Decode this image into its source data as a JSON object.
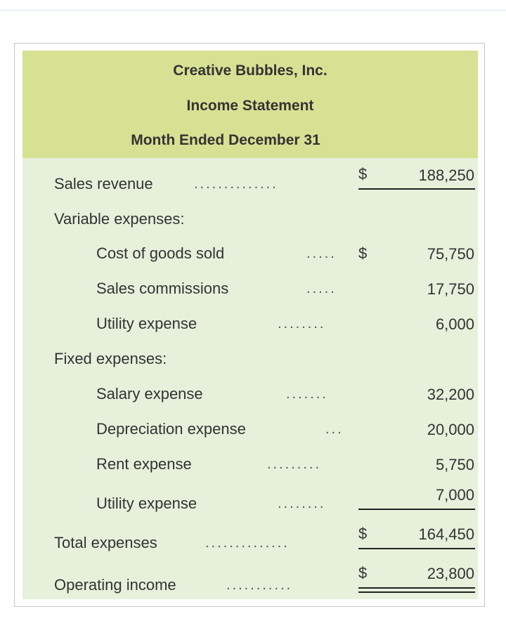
{
  "statement": {
    "company": "Creative Bubbles, Inc.",
    "title": "Income Statement",
    "period": "Month Ended December 31"
  },
  "rows": {
    "sales_revenue": {
      "label": "Sales revenue",
      "dots": "..............",
      "currency": "$",
      "amount": "188,250"
    },
    "variable_header": {
      "label": "Variable expenses:"
    },
    "cost_of_goods_sold": {
      "label": "Cost of goods sold",
      "dots": ".....",
      "currency": "$",
      "amount": "75,750"
    },
    "sales_commissions": {
      "label": "Sales commissions",
      "dots": ".....",
      "amount": "17,750"
    },
    "utility_expense_var": {
      "label": "Utility expense",
      "dots": "........",
      "amount": "6,000"
    },
    "fixed_header": {
      "label": "Fixed expenses:"
    },
    "salary_expense": {
      "label": "Salary expense",
      "dots": ".......",
      "amount": "32,200"
    },
    "depreciation_expense": {
      "label": "Depreciation expense",
      "dots": "...",
      "amount": "20,000"
    },
    "rent_expense": {
      "label": "Rent expense",
      "dots": ".........",
      "amount": "5,750"
    },
    "utility_expense_fixed": {
      "label": "Utility expense",
      "dots": "........",
      "amount": "7,000"
    },
    "total_expenses": {
      "label": "Total expenses",
      "dots": "..............",
      "currency": "$",
      "amount": "164,450"
    },
    "operating_income": {
      "label": "Operating income",
      "dots": "...........",
      "currency": "$",
      "amount": "23,800"
    }
  },
  "colors": {
    "header_bg": "#d7e193",
    "body_bg": "#e7f0db",
    "frame_border": "#c6c6c6"
  }
}
